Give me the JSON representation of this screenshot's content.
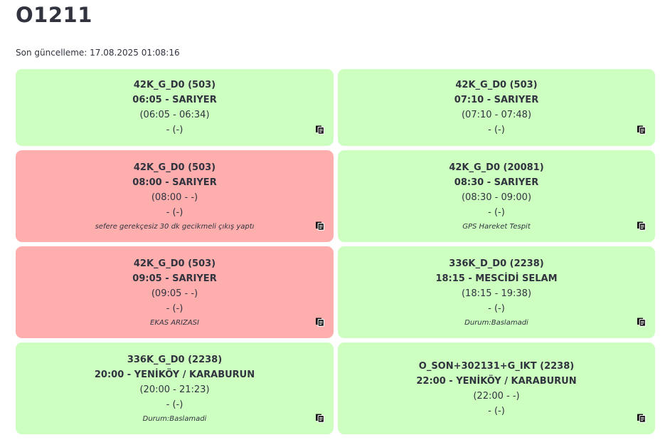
{
  "page": {
    "title": "O1211",
    "last_update": "Son güncelleme: 17.08.2025 01:08:16"
  },
  "colors": {
    "ok": "#ccffc0",
    "late": "#ffaeae"
  },
  "trips": [
    {
      "status": "ok",
      "route": "42K_G_D0 (503)",
      "departure": "06:05 - SARIYER",
      "range": "(06:05 - 06:34)",
      "extra": "- (-)",
      "note": "",
      "icon": "copy-icon"
    },
    {
      "status": "ok",
      "route": "42K_G_D0 (503)",
      "departure": "07:10 - SARIYER",
      "range": "(07:10 - 07:48)",
      "extra": "- (-)",
      "note": "",
      "icon": "copy-icon"
    },
    {
      "status": "late",
      "route": "42K_G_D0 (503)",
      "departure": "08:00 - SARIYER",
      "range": "(08:00 - -)",
      "extra": "- (-)",
      "note": "sefere gerekçesiz 30 dk gecikmeli çıkış yaptı",
      "icon": "copy-icon"
    },
    {
      "status": "ok",
      "route": "42K_G_D0 (20081)",
      "departure": "08:30 - SARIYER",
      "range": "(08:30 - 09:00)",
      "extra": "- (-)",
      "note": "GPS Hareket Tespit",
      "icon": "copy-icon"
    },
    {
      "status": "late",
      "route": "42K_G_D0 (503)",
      "departure": "09:05 - SARIYER",
      "range": "(09:05 - -)",
      "extra": "- (-)",
      "note": "EKAS ARIZASI",
      "icon": "copy-icon"
    },
    {
      "status": "ok",
      "route": "336K_D_D0 (2238)",
      "departure": "18:15 - MESCİDİ SELAM",
      "range": "(18:15 - 19:38)",
      "extra": "- (-)",
      "note": "Durum:Baslamadi",
      "icon": "copy-icon"
    },
    {
      "status": "ok",
      "route": "336K_G_D0 (2238)",
      "departure": "20:00 - YENİKÖY / KARABURUN",
      "range": "(20:00 - 21:23)",
      "extra": "- (-)",
      "note": "Durum:Baslamadi",
      "icon": "copy-icon"
    },
    {
      "status": "ok",
      "route": "O_SON+302131+G_IKT (2238)",
      "departure": "22:00 - YENİKÖY / KARABURUN",
      "range": "(22:00 - -)",
      "extra": "- (-)",
      "note": "",
      "icon": "copy-icon"
    }
  ]
}
